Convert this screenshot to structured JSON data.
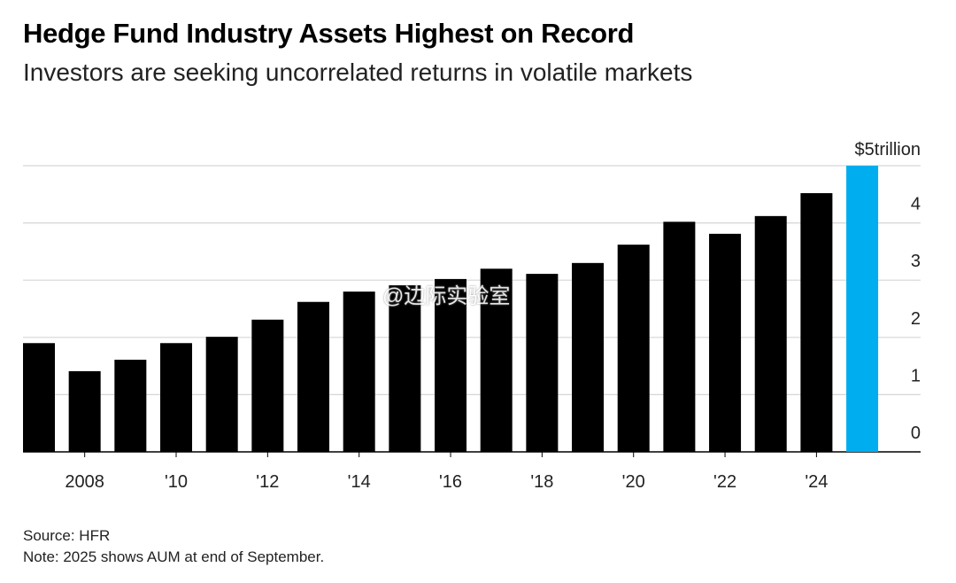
{
  "title": "Hedge Fund Industry Assets Highest on Record",
  "subtitle": "Investors are seeking uncorrelated returns in volatile markets",
  "source": "Source: HFR",
  "note": "Note: 2025 shows AUM at end of September.",
  "watermark": "@边际实验室",
  "chart_data": {
    "type": "bar",
    "categories": [
      "2007",
      "2008",
      "2009",
      "2010",
      "2011",
      "2012",
      "2013",
      "2014",
      "2015",
      "2016",
      "2017",
      "2018",
      "2019",
      "2020",
      "2021",
      "2022",
      "2023",
      "2024",
      "2025"
    ],
    "values": [
      1.9,
      1.41,
      1.61,
      1.9,
      2.01,
      2.31,
      2.62,
      2.8,
      2.91,
      3.02,
      3.2,
      3.11,
      3.3,
      3.62,
      4.02,
      3.81,
      4.12,
      4.52,
      5.0
    ],
    "unit": "trillion USD",
    "x_tick_labels": [
      {
        "category": "2008",
        "label": "2008"
      },
      {
        "category": "2010",
        "label": "'10"
      },
      {
        "category": "2012",
        "label": "'12"
      },
      {
        "category": "2014",
        "label": "'14"
      },
      {
        "category": "2016",
        "label": "'16"
      },
      {
        "category": "2018",
        "label": "'18"
      },
      {
        "category": "2020",
        "label": "'20"
      },
      {
        "category": "2022",
        "label": "'22"
      },
      {
        "category": "2024",
        "label": "'24"
      }
    ],
    "y_ticks": [
      0,
      1,
      2,
      3,
      4,
      5
    ],
    "y_tick_labels": [
      "0",
      "1",
      "2",
      "3",
      "4",
      "$5trillion"
    ],
    "ylim": [
      0,
      5
    ],
    "y_axis_side": "right",
    "grid": true,
    "colors": {
      "default": "#000000",
      "highlight": "#00adef"
    },
    "highlight_category": "2025"
  }
}
